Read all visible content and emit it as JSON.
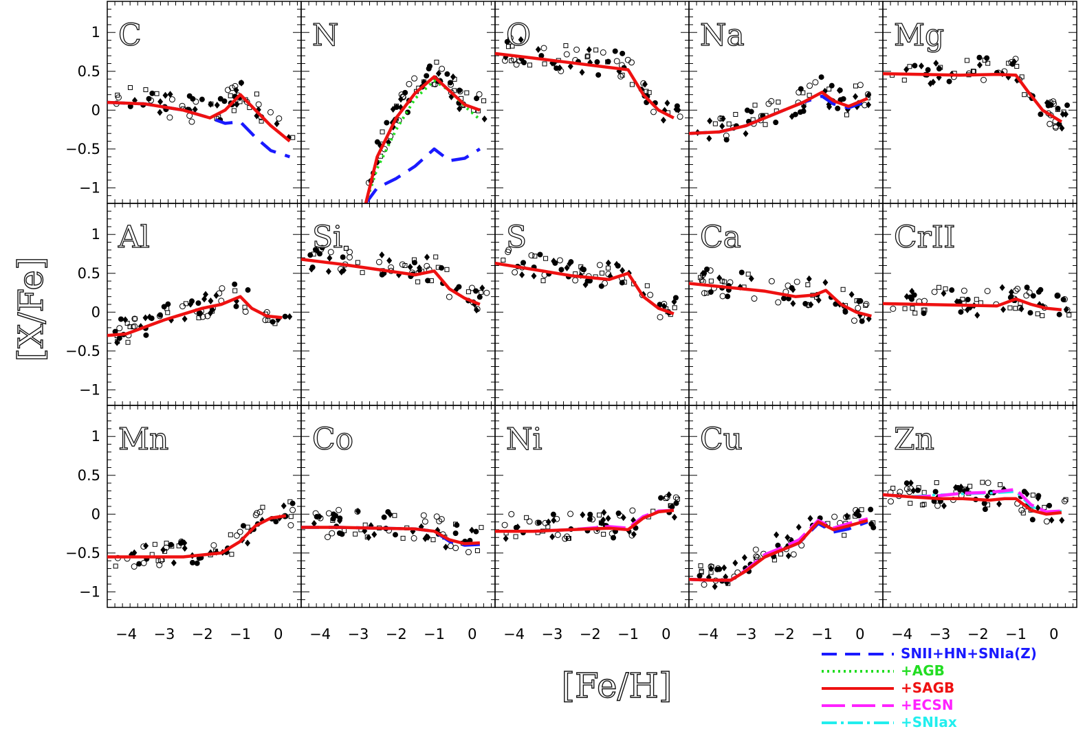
{
  "chart_data": {
    "type": "line",
    "xlabel": "[Fe/H]",
    "ylabel": "[X/Fe]",
    "xlim": [
      -4.5,
      0.6
    ],
    "ylim": [
      -1.2,
      1.4
    ],
    "xticks": [
      -4,
      -3,
      -2,
      -1,
      0
    ],
    "xtick_labels": [
      "−4",
      "−3",
      "−2",
      "−1",
      "0"
    ],
    "yticks": [
      1,
      0.5,
      0,
      -0.5,
      -1
    ],
    "ytick_labels": [
      "1",
      "0.5",
      "0",
      "−0.5",
      "−1"
    ],
    "legend": {
      "placement": "bottom-right",
      "entries": [
        {
          "label": "SNII+HN+SNIa(Z)",
          "color": "#1a1aff",
          "style": "dashed"
        },
        {
          "label": "+AGB",
          "color": "#22dd22",
          "style": "dotted"
        },
        {
          "label": "+SAGB",
          "color": "#ee1111",
          "style": "solid"
        },
        {
          "label": "+ECSN",
          "color": "#ff22ff",
          "style": "longdash"
        },
        {
          "label": "+SNIax",
          "color": "#22eeee",
          "style": "dashdot"
        }
      ]
    },
    "panels": [
      {
        "element": "C",
        "model_x": [
          -4.5,
          -3.5,
          -2.5,
          -1.8,
          -1.4,
          -1.0,
          -0.6,
          -0.2,
          0.3
        ],
        "sagb_y": [
          0.1,
          0.08,
          0.0,
          -0.1,
          0.0,
          0.2,
          0.0,
          -0.2,
          -0.4
        ],
        "base_y": [
          0.1,
          0.08,
          0.0,
          -0.1,
          -0.17,
          -0.15,
          -0.35,
          -0.52,
          -0.6
        ]
      },
      {
        "element": "N",
        "model_x": [
          -2.8,
          -2.5,
          -2.0,
          -1.5,
          -1.0,
          -0.6,
          -0.2,
          0.2
        ],
        "sagb_y": [
          -1.2,
          -0.6,
          -0.1,
          0.22,
          0.43,
          0.25,
          0.07,
          0.0
        ],
        "agb_y": [
          -1.2,
          -0.75,
          -0.25,
          0.15,
          0.38,
          0.25,
          0.05,
          -0.12
        ],
        "base_y": [
          -1.2,
          -1.0,
          -0.88,
          -0.72,
          -0.5,
          -0.65,
          -0.62,
          -0.5
        ]
      },
      {
        "element": "O",
        "model_x": [
          -4.5,
          -3.5,
          -2.5,
          -1.5,
          -1.0,
          -0.6,
          -0.2,
          0.2
        ],
        "sagb_y": [
          0.73,
          0.67,
          0.61,
          0.55,
          0.52,
          0.2,
          0.0,
          -0.1
        ]
      },
      {
        "element": "Na",
        "model_x": [
          -4.5,
          -3.7,
          -3.0,
          -2.0,
          -1.5,
          -1.0,
          -0.7,
          -0.3,
          0.2
        ],
        "sagb_y": [
          -0.3,
          -0.28,
          -0.2,
          0.0,
          0.1,
          0.23,
          0.12,
          0.05,
          0.15
        ],
        "base_y": [
          -0.3,
          -0.28,
          -0.2,
          0.0,
          0.1,
          0.18,
          0.08,
          0.03,
          0.12
        ]
      },
      {
        "element": "Mg",
        "model_x": [
          -4.5,
          -3.5,
          -2.5,
          -1.5,
          -1.0,
          -0.7,
          -0.3,
          0.2
        ],
        "sagb_y": [
          0.47,
          0.46,
          0.45,
          0.46,
          0.45,
          0.25,
          0.0,
          -0.15
        ]
      },
      {
        "element": "Al",
        "model_x": [
          -4.5,
          -4.0,
          -3.0,
          -2.0,
          -1.5,
          -1.0,
          -0.7,
          -0.3,
          0.1
        ],
        "sagb_y": [
          -0.3,
          -0.28,
          -0.1,
          0.05,
          0.1,
          0.2,
          0.05,
          -0.05,
          -0.07
        ]
      },
      {
        "element": "Si",
        "model_x": [
          -4.5,
          -3.5,
          -2.5,
          -1.5,
          -1.0,
          -0.6,
          -0.2,
          0.2
        ],
        "sagb_y": [
          0.68,
          0.62,
          0.55,
          0.48,
          0.53,
          0.3,
          0.18,
          0.1
        ]
      },
      {
        "element": "S",
        "model_x": [
          -4.5,
          -3.5,
          -2.5,
          -1.5,
          -1.0,
          -0.6,
          -0.2,
          0.2
        ],
        "sagb_y": [
          0.63,
          0.55,
          0.47,
          0.42,
          0.5,
          0.2,
          0.05,
          -0.02
        ]
      },
      {
        "element": "Ca",
        "model_x": [
          -4.5,
          -3.5,
          -2.5,
          -1.7,
          -1.2,
          -0.9,
          -0.5,
          -0.1,
          0.3
        ],
        "sagb_y": [
          0.37,
          0.32,
          0.27,
          0.2,
          0.22,
          0.28,
          0.1,
          0.0,
          -0.05
        ]
      },
      {
        "element": "CrII",
        "model_x": [
          -4.5,
          -3.5,
          -2.5,
          -1.5,
          -1.0,
          -0.6,
          -0.2,
          0.2
        ],
        "sagb_y": [
          0.11,
          0.1,
          0.09,
          0.08,
          0.17,
          0.1,
          0.05,
          0.03
        ]
      },
      {
        "element": "Mn",
        "model_x": [
          -4.5,
          -3.5,
          -2.5,
          -1.5,
          -1.0,
          -0.6,
          -0.2,
          0.2
        ],
        "sagb_y": [
          -0.55,
          -0.55,
          -0.55,
          -0.5,
          -0.35,
          -0.15,
          -0.05,
          -0.02
        ]
      },
      {
        "element": "Co",
        "model_x": [
          -4.5,
          -3.5,
          -2.5,
          -1.5,
          -1.0,
          -0.6,
          -0.2,
          0.2
        ],
        "sagb_y": [
          -0.17,
          -0.17,
          -0.18,
          -0.19,
          -0.22,
          -0.33,
          -0.38,
          -0.37
        ],
        "base_y": [
          -0.17,
          -0.17,
          -0.18,
          -0.19,
          -0.22,
          -0.35,
          -0.4,
          -0.39
        ]
      },
      {
        "element": "Ni",
        "model_x": [
          -4.5,
          -3.5,
          -2.5,
          -1.5,
          -1.0,
          -0.6,
          -0.2,
          0.2
        ],
        "sagb_y": [
          -0.22,
          -0.22,
          -0.2,
          -0.18,
          -0.2,
          -0.05,
          0.03,
          0.05
        ],
        "ecsn_y": [
          -0.22,
          -0.22,
          -0.2,
          -0.16,
          -0.18,
          -0.03,
          0.04,
          0.05
        ]
      },
      {
        "element": "Cu",
        "model_x": [
          -4.5,
          -3.9,
          -3.4,
          -3.0,
          -2.5,
          -2.0,
          -1.6,
          -1.1,
          -0.7,
          -0.3,
          0.2
        ],
        "sagb_y": [
          -0.84,
          -0.85,
          -0.85,
          -0.73,
          -0.55,
          -0.45,
          -0.37,
          -0.1,
          -0.2,
          -0.15,
          -0.08
        ],
        "ecsn_y": [
          -0.84,
          -0.85,
          -0.85,
          -0.72,
          -0.52,
          -0.42,
          -0.33,
          -0.08,
          -0.18,
          -0.12,
          -0.06
        ],
        "base_y": [
          -0.84,
          -0.85,
          -0.85,
          -0.73,
          -0.55,
          -0.45,
          -0.37,
          -0.12,
          -0.23,
          -0.19,
          -0.1
        ]
      },
      {
        "element": "Zn",
        "model_x": [
          -4.5,
          -3.7,
          -3.0,
          -2.4,
          -1.7,
          -1.3,
          -1.0,
          -0.6,
          -0.2,
          0.2
        ],
        "sagb_y": [
          0.25,
          0.22,
          0.2,
          0.2,
          0.18,
          0.2,
          0.2,
          0.05,
          0.0,
          0.02
        ],
        "ecsn_y": [
          0.25,
          0.22,
          0.24,
          0.27,
          0.28,
          0.3,
          0.32,
          0.12,
          0.03,
          0.04
        ],
        "sniax_y": [
          0.25,
          0.23,
          0.25,
          0.26,
          0.27,
          0.28,
          0.29,
          0.1,
          0.03,
          0.04
        ]
      }
    ]
  }
}
